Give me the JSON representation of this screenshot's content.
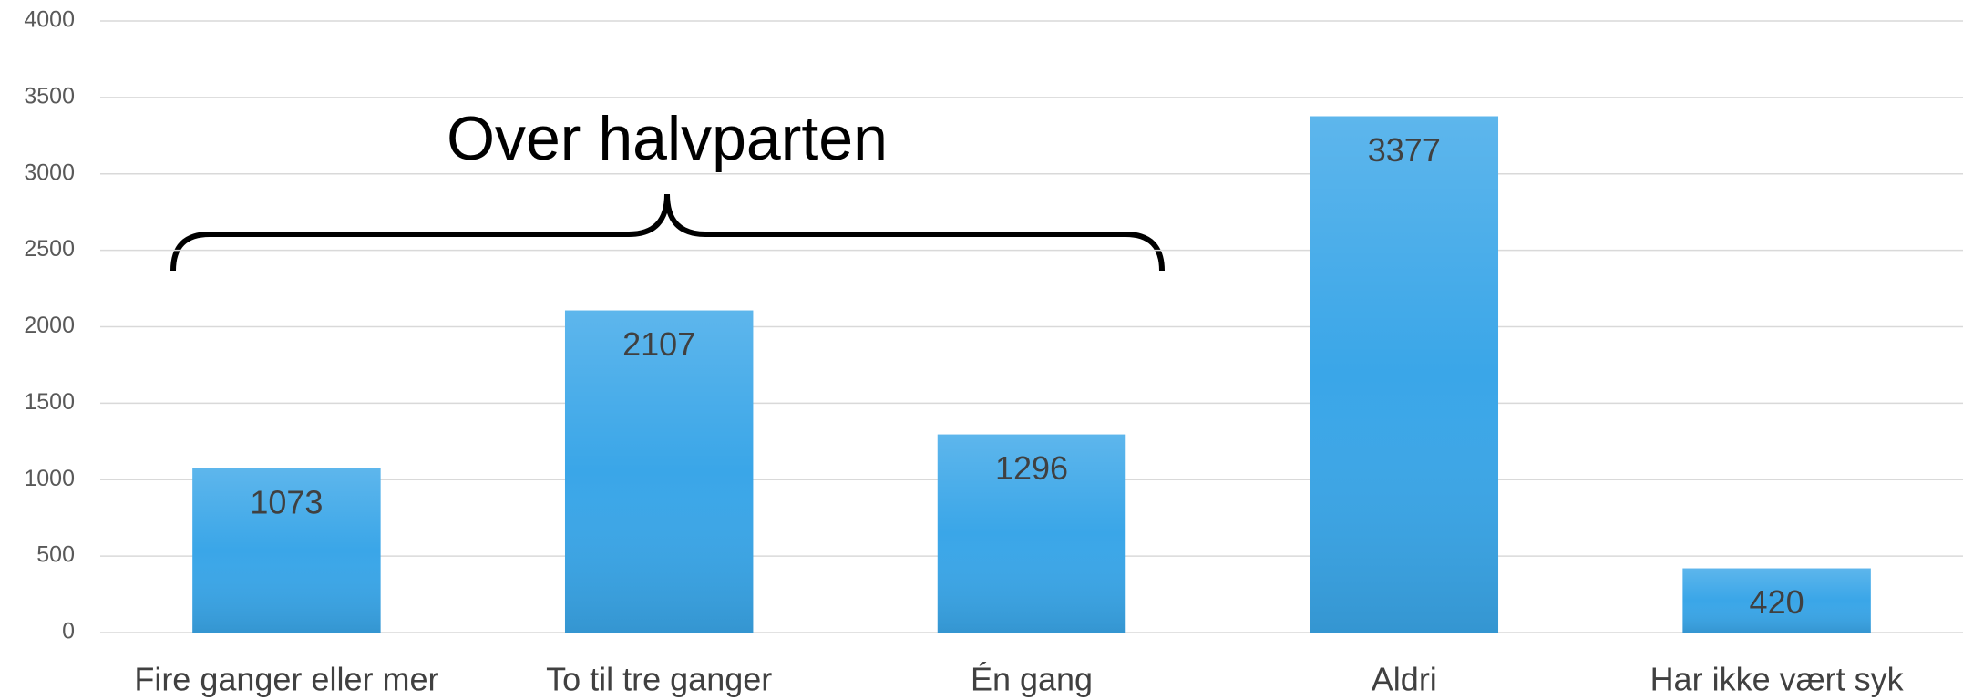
{
  "chart_data": {
    "type": "bar",
    "categories": [
      "Fire ganger eller mer",
      "To til tre ganger",
      "Én gang",
      "Aldri",
      "Har ikke vært syk"
    ],
    "values": [
      1073,
      2107,
      1296,
      3377,
      420
    ],
    "color": "#3aa6e8",
    "ylim": [
      0,
      4000
    ],
    "yticks": [
      0,
      500,
      1000,
      1500,
      2000,
      2500,
      3000,
      3500,
      4000
    ],
    "grid": true,
    "annotation": "Over halvparten"
  }
}
